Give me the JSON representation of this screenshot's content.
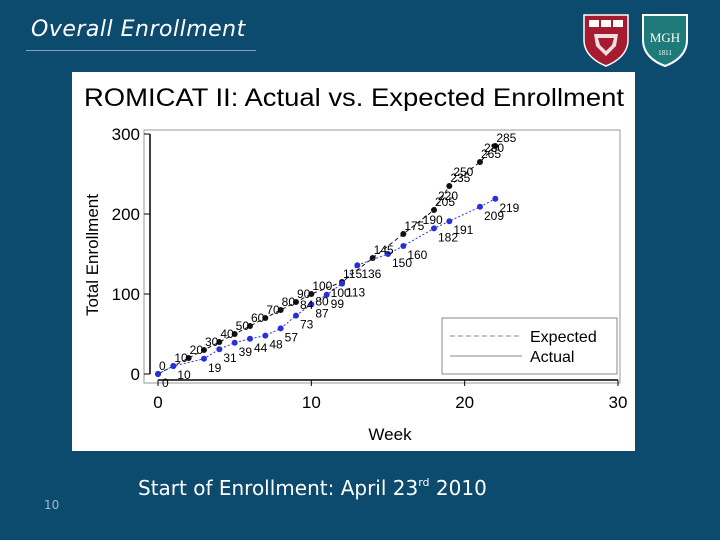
{
  "slide": {
    "title": "Overall Enrollment",
    "footer_text_main": "Start of Enrollment: April 23",
    "footer_text_sup": "rd",
    "footer_text_end": "2010",
    "page_number": "10",
    "background_color": "#0c4a6e"
  },
  "logos": {
    "harvard": {
      "icon": "harvard-shield-icon",
      "text": "VE RI TAS",
      "color": "#a51c30"
    },
    "mgh": {
      "icon": "mgh-shield-icon",
      "text": "MGH",
      "year": "1811",
      "color": "#1f7a7a"
    }
  },
  "chart_data": {
    "type": "line",
    "title": "ROMICAT II: Actual vs. Expected Enrollment",
    "xlabel": "Week",
    "ylabel": "Total Enrollment",
    "xlim": [
      0,
      30
    ],
    "ylim": [
      0,
      300
    ],
    "xticks": [
      0,
      10,
      20,
      30
    ],
    "yticks": [
      0,
      100,
      200,
      300
    ],
    "grid": false,
    "legend": "bottom-right",
    "series": [
      {
        "name": "Expected",
        "color": "#111111",
        "dash": true,
        "x": [
          0,
          1,
          2,
          3,
          4,
          5,
          6,
          7,
          8,
          9,
          10,
          12,
          14,
          16,
          18,
          19,
          21,
          22
        ],
        "y": [
          0,
          10,
          20,
          30,
          40,
          50,
          60,
          70,
          80,
          90,
          100,
          115,
          145,
          175,
          205,
          235,
          265,
          285
        ],
        "labels": [
          "0",
          "10",
          "20",
          "30",
          "40",
          "50",
          "60",
          "70",
          "80",
          "90",
          "100",
          "115",
          "145",
          "175",
          "205",
          "235",
          "265",
          "285"
        ]
      },
      {
        "name": "Actual",
        "color": "#2632d6",
        "dash": false,
        "x": [
          0,
          1,
          3,
          4,
          5,
          6,
          7,
          8,
          9,
          10,
          11,
          12,
          13,
          15,
          16,
          18,
          19,
          21,
          22
        ],
        "y": [
          0,
          10,
          19,
          31,
          39,
          44,
          48,
          57,
          73,
          87,
          99,
          113,
          136,
          150,
          160,
          182,
          191,
          209,
          219
        ],
        "labels": [
          "0",
          "10",
          "19",
          "31",
          "39",
          "44",
          "48",
          "57",
          "73",
          "87",
          "99",
          "113",
          "136",
          "150",
          "160",
          "182",
          "191",
          "209",
          "219"
        ]
      }
    ],
    "extra_labels": [
      {
        "x": 9,
        "y": 84,
        "text": "84"
      },
      {
        "x": 10,
        "y": 88,
        "text": "80"
      },
      {
        "x": 11,
        "y": 99,
        "text": "100"
      },
      {
        "x": 17,
        "y": 190,
        "text": "190"
      },
      {
        "x": 18,
        "y": 220,
        "text": "220"
      },
      {
        "x": 19,
        "y": 250,
        "text": "250"
      },
      {
        "x": 21,
        "y": 280,
        "text": "280"
      }
    ]
  }
}
